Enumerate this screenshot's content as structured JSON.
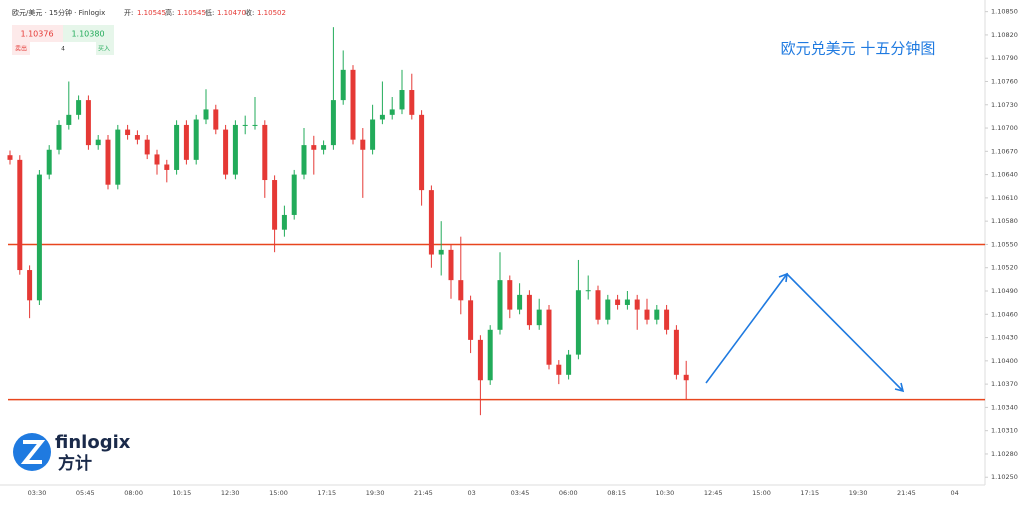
{
  "header": {
    "symbol": "欧元/美元 · 15分钟 · Finlogix",
    "open_label": "开:",
    "open": "1.10545",
    "high_label": "高:",
    "high": "1.10545",
    "low_label": "低:",
    "low": "1.10470",
    "close_label": "收:",
    "close": "1.10502"
  },
  "trade": {
    "sell_price": "1.10376",
    "buy_price": "1.10380",
    "sell": "卖出",
    "spread": "4",
    "buy": "买入"
  },
  "logo": {
    "name": "finlogix",
    "cn": "方计"
  },
  "chart_data": {
    "type": "candlestick",
    "title": "欧元兑美元 十五分钟图",
    "up_color": "#22ab5a",
    "down_color": "#e53935",
    "level_color": "#e8461e",
    "annotation_color": "#1f7ae0",
    "open": [
      1.10665,
      1.10659,
      1.10517,
      1.10478,
      1.1064,
      1.10672,
      1.10704,
      1.10717,
      1.10736,
      1.10678,
      1.10685,
      1.10627,
      1.10698,
      1.10691,
      1.10685,
      1.10666,
      1.10653,
      1.10646,
      1.10704,
      1.10659,
      1.10711,
      1.10724,
      1.10698,
      1.1064,
      1.10704,
      1.10704,
      1.10704,
      1.10633,
      1.10569,
      1.10588,
      1.1064,
      1.10678,
      1.10672,
      1.10678,
      1.10736,
      1.10775,
      1.10685,
      1.10672,
      1.10711,
      1.10717,
      1.10724,
      1.10749,
      1.10717,
      1.1062,
      1.10537,
      1.10543,
      1.10504,
      1.10478,
      1.10427,
      1.10375,
      1.1044,
      1.10504,
      1.10466,
      1.10485,
      1.10446,
      1.10466,
      1.10395,
      1.10382,
      1.10408,
      1.10491,
      1.10491,
      1.10453,
      1.10479,
      1.10472,
      1.10479,
      1.10466,
      1.10453,
      1.10466,
      1.1044,
      1.10382
    ],
    "high": [
      1.10671,
      1.10665,
      1.10523,
      1.10646,
      1.10678,
      1.1071,
      1.1076,
      1.10742,
      1.10742,
      1.10691,
      1.10691,
      1.10704,
      1.10704,
      1.10697,
      1.10691,
      1.10672,
      1.10659,
      1.1071,
      1.1071,
      1.10717,
      1.1075,
      1.1073,
      1.10704,
      1.1071,
      1.10716,
      1.1074,
      1.1071,
      1.10639,
      1.106,
      1.10646,
      1.107,
      1.1069,
      1.10684,
      1.1083,
      1.108,
      1.10781,
      1.107,
      1.1073,
      1.1076,
      1.1074,
      1.10775,
      1.1077,
      1.10723,
      1.10626,
      1.1058,
      1.1055,
      1.1056,
      1.10484,
      1.10433,
      1.10446,
      1.1054,
      1.1051,
      1.105,
      1.10491,
      1.1048,
      1.10472,
      1.10401,
      1.10414,
      1.1053,
      1.1051,
      1.10497,
      1.10485,
      1.10485,
      1.1049,
      1.10485,
      1.1048,
      1.10472,
      1.10472,
      1.10446,
      1.104
    ],
    "low": [
      1.10653,
      1.10511,
      1.10455,
      1.10472,
      1.10634,
      1.10666,
      1.10698,
      1.10711,
      1.10672,
      1.10672,
      1.10621,
      1.10621,
      1.10685,
      1.10679,
      1.1066,
      1.1064,
      1.1063,
      1.1064,
      1.10653,
      1.10653,
      1.10705,
      1.10692,
      1.10634,
      1.10634,
      1.10692,
      1.10698,
      1.1061,
      1.1054,
      1.1056,
      1.10582,
      1.10634,
      1.1064,
      1.10666,
      1.10672,
      1.1073,
      1.10679,
      1.1061,
      1.10666,
      1.10705,
      1.10711,
      1.10718,
      1.10711,
      1.106,
      1.1052,
      1.1051,
      1.1048,
      1.1046,
      1.1041,
      1.1033,
      1.10369,
      1.10434,
      1.10455,
      1.1046,
      1.1044,
      1.1044,
      1.10389,
      1.1037,
      1.10376,
      1.10402,
      1.10479,
      1.10447,
      1.10447,
      1.10466,
      1.10466,
      1.1044,
      1.10447,
      1.10447,
      1.10434,
      1.10376,
      1.1035
    ],
    "close": [
      1.10659,
      1.10517,
      1.10478,
      1.1064,
      1.10672,
      1.10704,
      1.10717,
      1.10736,
      1.10678,
      1.10685,
      1.10627,
      1.10698,
      1.10691,
      1.10685,
      1.10666,
      1.10653,
      1.10646,
      1.10704,
      1.10659,
      1.10711,
      1.10724,
      1.10698,
      1.1064,
      1.10704,
      1.10704,
      1.10704,
      1.10633,
      1.10569,
      1.10588,
      1.1064,
      1.10678,
      1.10672,
      1.10678,
      1.10736,
      1.10775,
      1.10685,
      1.10672,
      1.10711,
      1.10717,
      1.10724,
      1.10749,
      1.10717,
      1.1062,
      1.10537,
      1.10543,
      1.10504,
      1.10478,
      1.10427,
      1.10375,
      1.1044,
      1.10504,
      1.10466,
      1.10485,
      1.10446,
      1.10466,
      1.10395,
      1.10382,
      1.10408,
      1.10491,
      1.10491,
      1.10453,
      1.10479,
      1.10472,
      1.10479,
      1.10466,
      1.10453,
      1.10466,
      1.1044,
      1.10382,
      1.10375
    ],
    "levels": [
      1.1055,
      1.1035
    ],
    "ylim": [
      1.1024,
      1.10865
    ],
    "yticks": [
      {
        "value": 1.1085,
        "label": "1.10850"
      },
      {
        "value": 1.1082,
        "label": "1.10820"
      },
      {
        "value": 1.1079,
        "label": "1.10790"
      },
      {
        "value": 1.1076,
        "label": "1.10760"
      },
      {
        "value": 1.1073,
        "label": "1.10730"
      },
      {
        "value": 1.107,
        "label": "1.10700"
      },
      {
        "value": 1.1067,
        "label": "1.10670"
      },
      {
        "value": 1.1064,
        "label": "1.10640"
      },
      {
        "value": 1.1061,
        "label": "1.10610"
      },
      {
        "value": 1.1058,
        "label": "1.10580"
      },
      {
        "value": 1.1055,
        "label": "1.10550"
      },
      {
        "value": 1.1052,
        "label": "1.10520"
      },
      {
        "value": 1.1049,
        "label": "1.10490"
      },
      {
        "value": 1.1046,
        "label": "1.10460"
      },
      {
        "value": 1.1043,
        "label": "1.10430"
      },
      {
        "value": 1.104,
        "label": "1.10400"
      },
      {
        "value": 1.1037,
        "label": "1.10370"
      },
      {
        "value": 1.1034,
        "label": "1.10340"
      },
      {
        "value": 1.1031,
        "label": "1.10310"
      },
      {
        "value": 1.1028,
        "label": "1.10280"
      },
      {
        "value": 1.1025,
        "label": "1.10250"
      }
    ],
    "x_labels": [
      "03:30",
      "05:45",
      "08:00",
      "10:15",
      "12:30",
      "15:00",
      "17:15",
      "19:30",
      "21:45",
      "03",
      "03:45",
      "06:00",
      "08:15",
      "10:30",
      "12:45",
      "15:00",
      "17:15",
      "19:30",
      "21:45",
      "04"
    ]
  }
}
